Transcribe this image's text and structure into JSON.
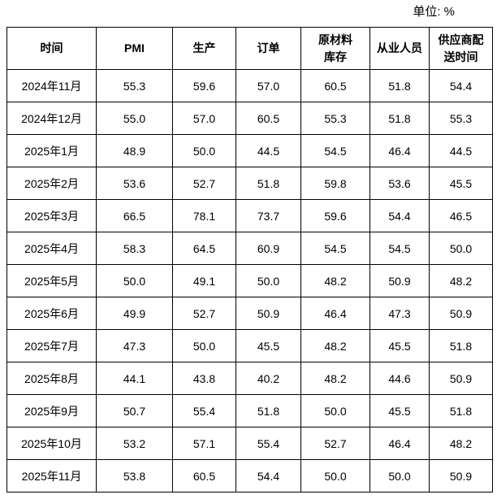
{
  "page": {
    "unit_label": "单位: %"
  },
  "chart_data": {
    "type": "table",
    "title": "",
    "unit": "单位: %",
    "columns": [
      "时间",
      "PMI",
      "生产",
      "订单",
      "原材料\n库存",
      "从业人员",
      "供应商配\n送时间"
    ],
    "rows": [
      [
        "2024年11月",
        "55.3",
        "59.6",
        "57.0",
        "60.5",
        "51.8",
        "54.4"
      ],
      [
        "2024年12月",
        "55.0",
        "57.0",
        "60.5",
        "55.3",
        "51.8",
        "55.3"
      ],
      [
        "2025年1月",
        "48.9",
        "50.0",
        "44.5",
        "54.5",
        "46.4",
        "44.5"
      ],
      [
        "2025年2月",
        "53.6",
        "52.7",
        "51.8",
        "59.8",
        "53.6",
        "45.5"
      ],
      [
        "2025年3月",
        "66.5",
        "78.1",
        "73.7",
        "59.6",
        "54.4",
        "46.5"
      ],
      [
        "2025年4月",
        "58.3",
        "64.5",
        "60.9",
        "54.5",
        "54.5",
        "50.0"
      ],
      [
        "2025年5月",
        "50.0",
        "49.1",
        "50.0",
        "48.2",
        "50.9",
        "48.2"
      ],
      [
        "2025年6月",
        "49.9",
        "52.7",
        "50.9",
        "46.4",
        "47.3",
        "50.9"
      ],
      [
        "2025年7月",
        "47.3",
        "50.0",
        "45.5",
        "48.2",
        "45.5",
        "51.8"
      ],
      [
        "2025年8月",
        "44.1",
        "43.8",
        "40.2",
        "48.2",
        "44.6",
        "50.9"
      ],
      [
        "2025年9月",
        "50.7",
        "55.4",
        "51.8",
        "50.0",
        "45.5",
        "51.8"
      ],
      [
        "2025年10月",
        "53.2",
        "57.1",
        "55.4",
        "52.7",
        "46.4",
        "48.2"
      ],
      [
        "2025年11月",
        "53.8",
        "60.5",
        "54.4",
        "50.0",
        "50.0",
        "50.9"
      ]
    ]
  }
}
